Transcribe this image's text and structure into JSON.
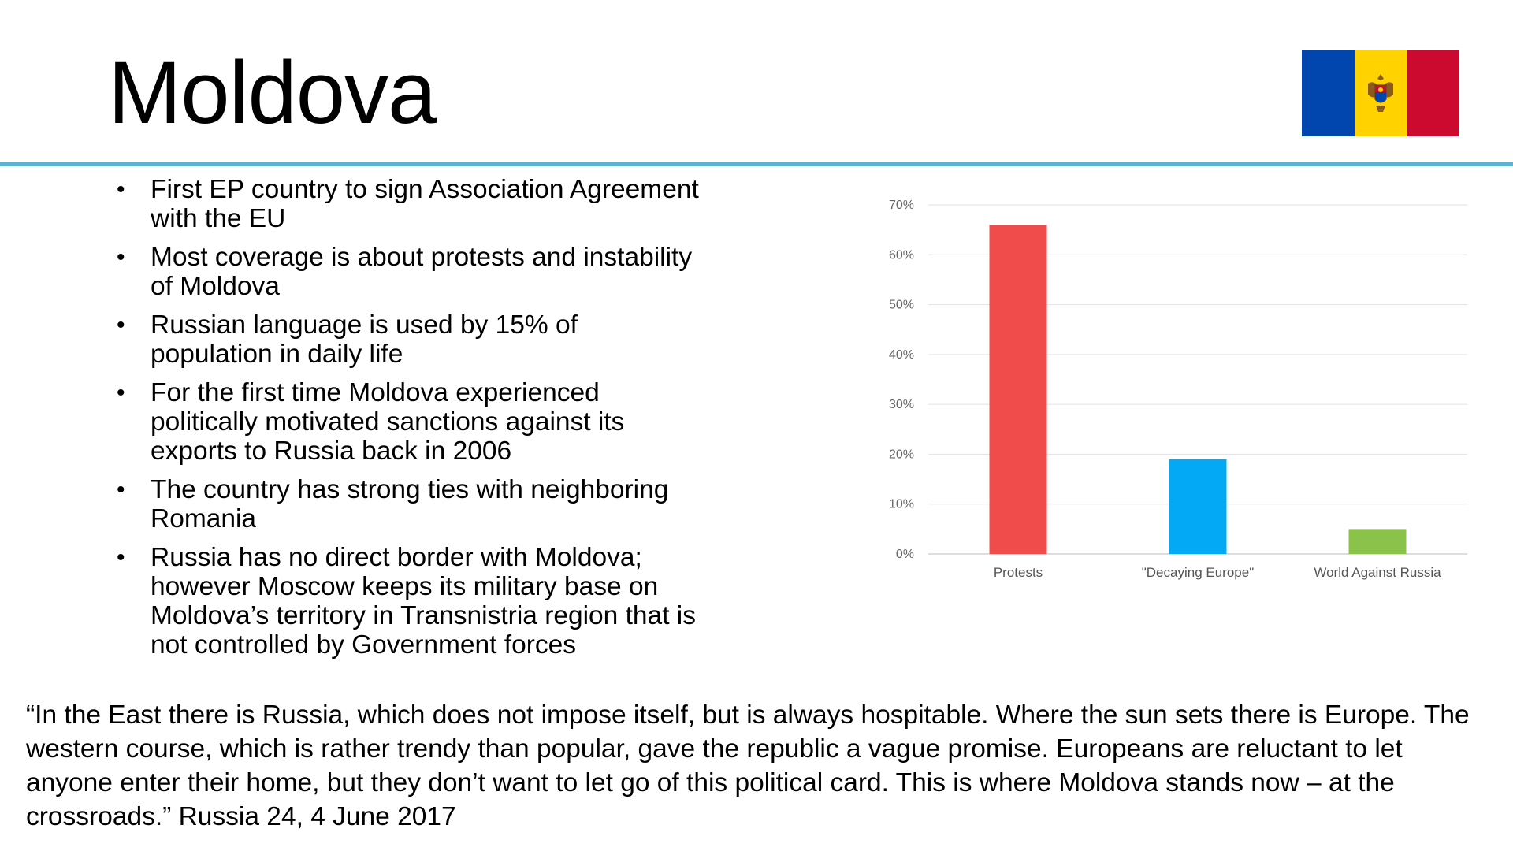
{
  "slide": {
    "title": "Moldova",
    "bullets": [
      "First EP country to sign Association Agreement with the EU",
      "Most coverage is about protests and instability of Moldova",
      "Russian language is used by 15% of population in daily life",
      "For the first time Moldova experienced politically motivated sanctions against its exports to Russia back in 2006",
      "The country has strong ties with neighboring Romania",
      "Russia has no direct border with Moldova; however Moscow keeps its military base on Moldova’s territory in Transnistria region that is not controlled by Government forces"
    ],
    "bullet_symbol": "•",
    "quote": "“In the East there is Russia, which does not impose itself, but is always hospitable. Where the sun sets there is Europe. The western course, which is rather trendy than popular, gave the republic a vague promise. Europeans are reluctant to let anyone enter their home, but they don’t want to let go of this political card.  This is where Moldova stands now – at the crossroads.” Russia 24, 4 June 2017",
    "flag": {
      "icon": "moldova-flag-icon",
      "colors": [
        "#0046ae",
        "#ffd200",
        "#cc092f"
      ]
    },
    "accent_color": "#5fb2d6"
  },
  "chart_data": {
    "type": "bar",
    "categories": [
      "Protests",
      "\"Decaying Europe\"",
      "World Against Russia"
    ],
    "values": [
      66,
      19,
      5
    ],
    "colors": [
      "#f04c4c",
      "#03a9f4",
      "#8bc34a"
    ],
    "ylim": [
      0,
      70
    ],
    "yticks": [
      "0%",
      "10%",
      "20%",
      "30%",
      "40%",
      "50%",
      "60%",
      "70%"
    ],
    "grid": true,
    "legend": "none"
  }
}
